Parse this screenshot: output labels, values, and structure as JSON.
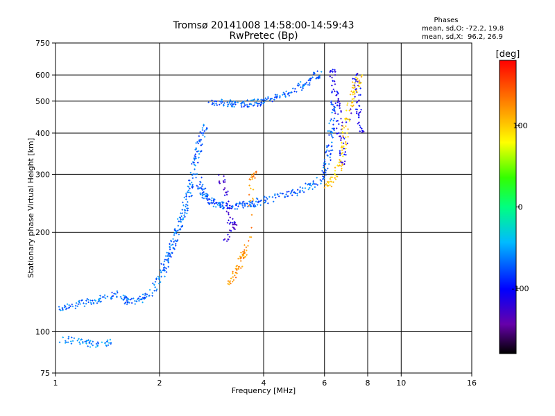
{
  "chart_data": {
    "type": "scatter",
    "title": "Tromsø 20141008 14:58:00-14:59:43",
    "subtitle": "RwPretec (Bp)",
    "xlabel": "Frequency [MHz]",
    "ylabel": "Stationary phase Virtual Height [km]",
    "x_scale": "log",
    "y_scale": "log",
    "xlim": [
      1,
      16
    ],
    "ylim": [
      75,
      750
    ],
    "x_ticks": [
      1,
      2,
      4,
      6,
      8,
      10,
      16
    ],
    "y_ticks": [
      75,
      100,
      200,
      300,
      400,
      500,
      600,
      750
    ],
    "grid": true,
    "annotation": {
      "title": "Phases",
      "line1": "mean, sd,O: -72.2, 19.8",
      "line2": "mean, sd,X:  96.2, 26.9"
    },
    "colorbar": {
      "label": "[deg]",
      "range": [
        -180,
        180
      ],
      "ticks": [
        100,
        0,
        -100
      ],
      "tick_labels": [
        "100",
        "0",
        "-100"
      ],
      "colormap": "rainbow"
    },
    "traces": [
      {
        "phase": -68,
        "points": [
          [
            1.02,
            118
          ],
          [
            1.1,
            120
          ],
          [
            1.2,
            122
          ],
          [
            1.3,
            124
          ],
          [
            1.4,
            127
          ],
          [
            1.5,
            130
          ],
          [
            1.6,
            125
          ],
          [
            1.7,
            122
          ],
          [
            1.8,
            126
          ],
          [
            1.9,
            132
          ],
          [
            2.0,
            145
          ],
          [
            2.05,
            155
          ],
          [
            2.1,
            165
          ],
          [
            2.15,
            175
          ],
          [
            2.2,
            185
          ],
          [
            2.25,
            200
          ],
          [
            2.3,
            215
          ],
          [
            2.35,
            230
          ],
          [
            2.4,
            250
          ],
          [
            2.45,
            270
          ],
          [
            2.5,
            300
          ],
          [
            2.55,
            330
          ],
          [
            2.6,
            360
          ],
          [
            2.65,
            390
          ],
          [
            2.7,
            420
          ]
        ]
      },
      {
        "phase": -72,
        "points": [
          [
            2.6,
            290
          ],
          [
            2.65,
            270
          ],
          [
            2.7,
            260
          ],
          [
            2.8,
            250
          ],
          [
            2.9,
            245
          ],
          [
            3.0,
            242
          ],
          [
            3.2,
            240
          ],
          [
            3.4,
            241
          ],
          [
            3.6,
            243
          ],
          [
            3.8,
            246
          ],
          [
            4.0,
            250
          ],
          [
            4.4,
            256
          ],
          [
            4.8,
            262
          ],
          [
            5.2,
            270
          ],
          [
            5.6,
            280
          ],
          [
            5.9,
            295
          ],
          [
            6.1,
            320
          ],
          [
            6.2,
            360
          ],
          [
            6.25,
            400
          ],
          [
            6.3,
            450
          ],
          [
            6.35,
            500
          ]
        ]
      },
      {
        "phase": -70,
        "points": [
          [
            2.8,
            500
          ],
          [
            3.0,
            495
          ],
          [
            3.2,
            492
          ],
          [
            3.4,
            490
          ],
          [
            3.6,
            492
          ],
          [
            3.8,
            495
          ],
          [
            4.0,
            500
          ],
          [
            4.3,
            510
          ],
          [
            4.6,
            525
          ],
          [
            5.0,
            545
          ],
          [
            5.3,
            565
          ],
          [
            5.6,
            590
          ],
          [
            5.8,
            610
          ]
        ]
      },
      {
        "phase": -110,
        "points": [
          [
            6.3,
            620
          ],
          [
            6.4,
            560
          ],
          [
            6.5,
            500
          ],
          [
            6.6,
            440
          ],
          [
            6.7,
            380
          ],
          [
            6.8,
            320
          ],
          [
            7.4,
            600
          ],
          [
            7.5,
            520
          ],
          [
            7.6,
            460
          ],
          [
            7.7,
            400
          ]
        ]
      },
      {
        "phase": 100,
        "points": [
          [
            6.0,
            275
          ],
          [
            6.3,
            285
          ],
          [
            6.6,
            310
          ],
          [
            6.8,
            350
          ],
          [
            6.9,
            400
          ],
          [
            7.0,
            450
          ],
          [
            7.2,
            520
          ],
          [
            7.4,
            560
          ],
          [
            7.6,
            590
          ]
        ]
      },
      {
        "phase": 125,
        "points": [
          [
            3.2,
            140
          ],
          [
            3.3,
            150
          ],
          [
            3.4,
            160
          ],
          [
            3.5,
            170
          ],
          [
            3.6,
            180
          ],
          [
            3.7,
            290
          ],
          [
            3.8,
            300
          ]
        ]
      },
      {
        "phase": -120,
        "points": [
          [
            3.0,
            300
          ],
          [
            3.1,
            260
          ],
          [
            3.2,
            220
          ],
          [
            3.3,
            210
          ],
          [
            3.1,
            190
          ]
        ]
      },
      {
        "phase": -60,
        "points": [
          [
            1.05,
            95
          ],
          [
            1.15,
            93
          ],
          [
            1.25,
            92
          ],
          [
            1.35,
            92
          ],
          [
            1.45,
            93
          ]
        ]
      }
    ]
  }
}
